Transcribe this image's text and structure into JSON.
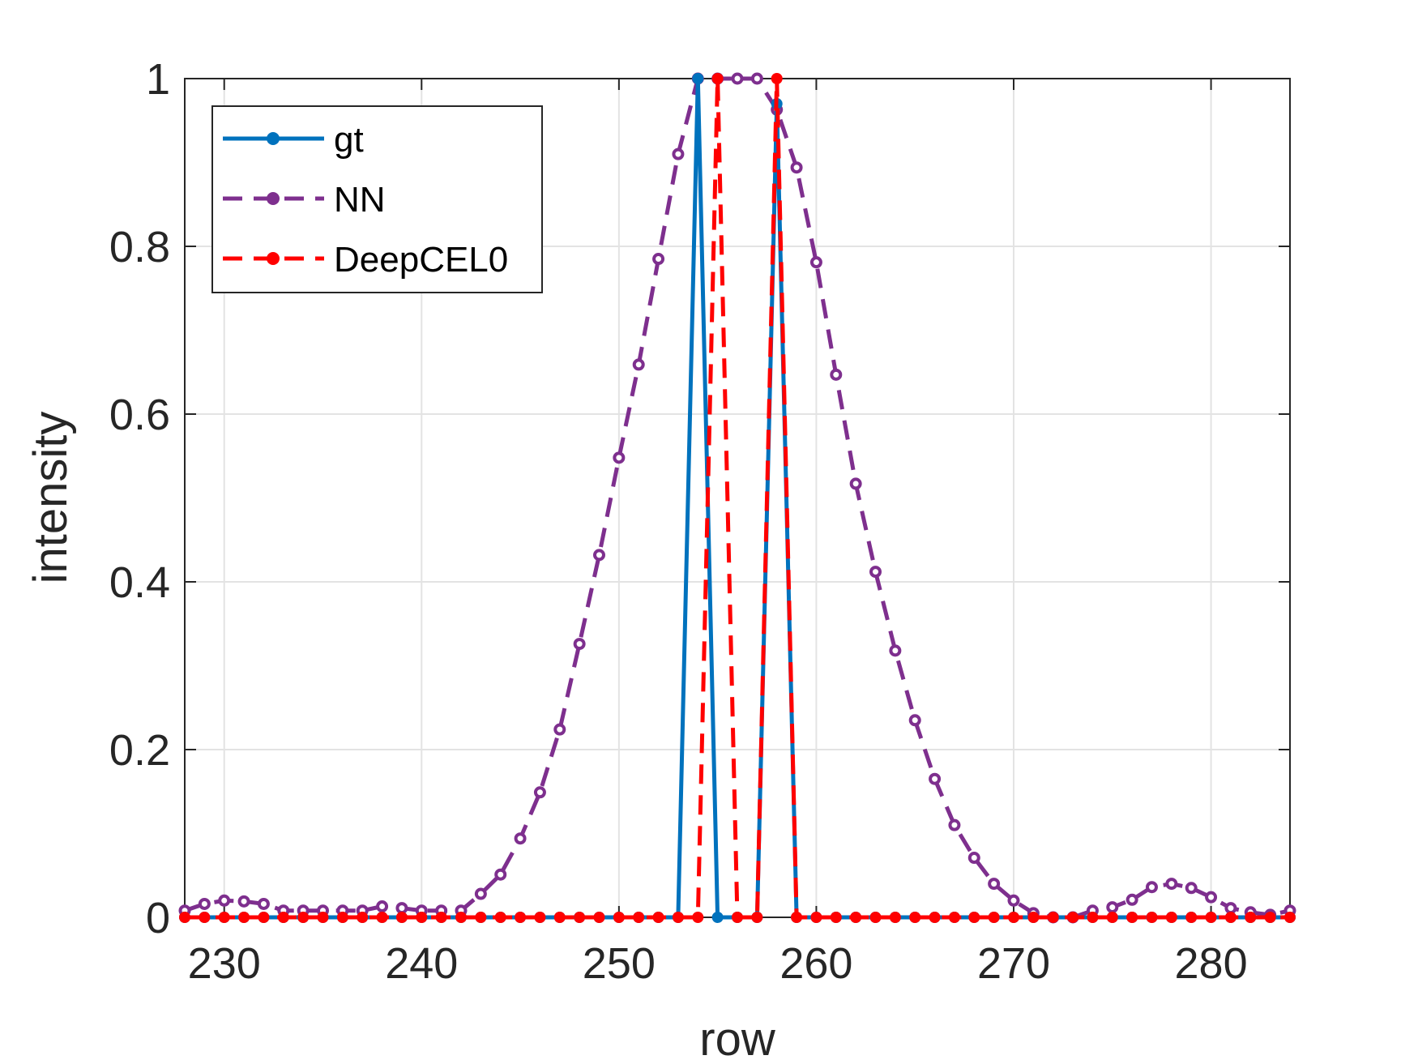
{
  "chart_data": {
    "type": "line",
    "title": "",
    "xlabel": "row",
    "ylabel": "intensity",
    "xlim": [
      228,
      284
    ],
    "ylim": [
      0,
      1
    ],
    "xticks": [
      230,
      240,
      250,
      260,
      270,
      280
    ],
    "yticks": [
      0,
      0.2,
      0.4,
      0.6,
      0.8,
      1
    ],
    "ytick_labels": [
      "0",
      "0.2",
      "0.4",
      "0.6",
      "0.8",
      "1"
    ],
    "grid": true,
    "legend_position": "top-left",
    "x": [
      228,
      229,
      230,
      231,
      232,
      233,
      234,
      235,
      236,
      237,
      238,
      239,
      240,
      241,
      242,
      243,
      244,
      245,
      246,
      247,
      248,
      249,
      250,
      251,
      252,
      253,
      254,
      255,
      256,
      257,
      258,
      259,
      260,
      261,
      262,
      263,
      264,
      265,
      266,
      267,
      268,
      269,
      270,
      271,
      272,
      273,
      274,
      275,
      276,
      277,
      278,
      279,
      280,
      281,
      282,
      283,
      284
    ],
    "series": [
      {
        "name": "gt",
        "color": "#0072BD",
        "dashed": false,
        "marker": "filled",
        "values": [
          0,
          0,
          0,
          0,
          0,
          0,
          0,
          0,
          0,
          0,
          0,
          0,
          0,
          0,
          0,
          0,
          0,
          0,
          0,
          0,
          0,
          0,
          0,
          0,
          0,
          0,
          1,
          0,
          0,
          0,
          0.97,
          0,
          0,
          0,
          0,
          0,
          0,
          0,
          0,
          0,
          0,
          0,
          0,
          0,
          0,
          0,
          0,
          0,
          0,
          0,
          0,
          0,
          0,
          0,
          0,
          0,
          0
        ]
      },
      {
        "name": "NN",
        "color": "#7E2F8E",
        "dashed": true,
        "marker": "open",
        "values": [
          0.008,
          0.016,
          0.02,
          0.019,
          0.016,
          0.008,
          0.008,
          0.008,
          0.008,
          0.008,
          0.013,
          0.011,
          0.008,
          0.008,
          0.008,
          0.028,
          0.051,
          0.094,
          0.149,
          0.224,
          0.326,
          0.432,
          0.548,
          0.659,
          0.785,
          0.91,
          1,
          1,
          1,
          1,
          0.963,
          0.894,
          0.781,
          0.647,
          0.517,
          0.412,
          0.318,
          0.235,
          0.165,
          0.11,
          0.071,
          0.04,
          0.02,
          0.005,
          0,
          0,
          0.008,
          0.012,
          0.021,
          0.036,
          0.04,
          0.035,
          0.024,
          0.011,
          0.006,
          0.003,
          0.008
        ]
      },
      {
        "name": "DeepCEL0",
        "color": "#FF0000",
        "dashed": true,
        "marker": "filled",
        "values": [
          0,
          0,
          0,
          0,
          0,
          0,
          0,
          0,
          0,
          0,
          0,
          0,
          0,
          0,
          0,
          0,
          0,
          0,
          0,
          0,
          0,
          0,
          0,
          0,
          0,
          0,
          0,
          1,
          0,
          0,
          1,
          0,
          0,
          0,
          0,
          0,
          0,
          0,
          0,
          0,
          0,
          0,
          0,
          0,
          0,
          0,
          0,
          0,
          0,
          0,
          0,
          0,
          0,
          0,
          0,
          0,
          0
        ]
      }
    ]
  }
}
